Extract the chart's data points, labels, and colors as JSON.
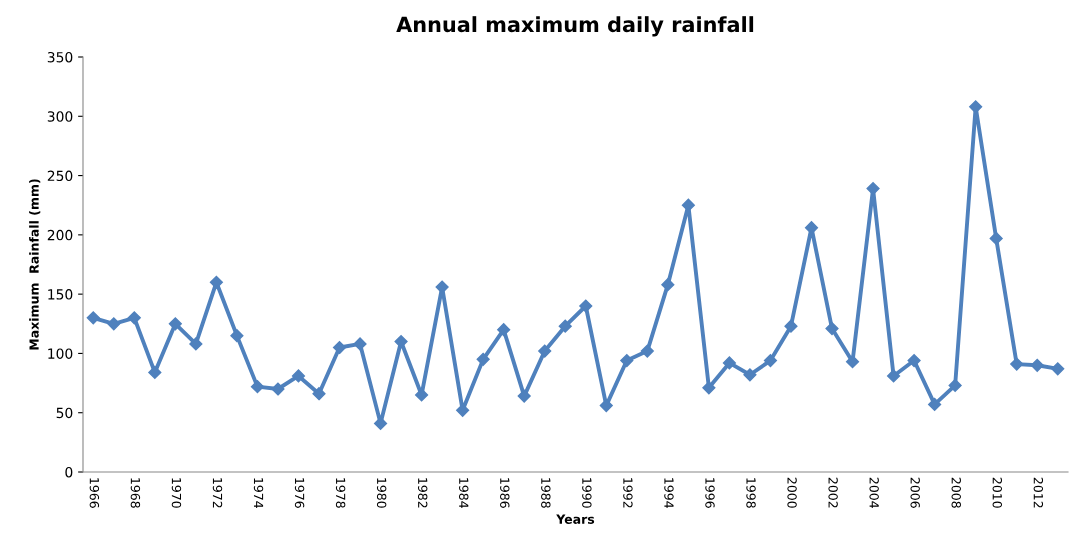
{
  "chart_data": {
    "type": "line",
    "title": "Annual maximum daily rainfall",
    "xlabel": "Years",
    "ylabel": "Maximum  Rainfall (mm)",
    "categories": [
      "1966",
      null,
      "1968",
      null,
      "1970",
      null,
      "1972",
      null,
      "1974",
      null,
      "1976",
      null,
      "1978",
      null,
      "1980",
      null,
      "1982",
      null,
      "1984",
      null,
      "1986",
      null,
      "1988",
      null,
      "1990",
      null,
      "1992",
      null,
      "1994",
      null,
      "1996",
      null,
      "1998",
      null,
      "2000",
      null,
      "2002",
      null,
      "2004",
      null,
      "2006",
      null,
      "2008",
      null,
      "2010",
      null,
      "2012",
      null
    ],
    "series": [
      {
        "color": "#4f81bd",
        "values": [
          130,
          125,
          130,
          84,
          125,
          108,
          160,
          115,
          72,
          70,
          81,
          66,
          105,
          108,
          41,
          110,
          65,
          156,
          52,
          95,
          120,
          64,
          102,
          123,
          140,
          56,
          94,
          102,
          158,
          225,
          71,
          92,
          82,
          94,
          123,
          206,
          121,
          93,
          239,
          81,
          94,
          57,
          73,
          308,
          197,
          91,
          90,
          87
        ]
      }
    ],
    "ylim": [
      0,
      350
    ],
    "yticks": [
      0,
      50,
      100,
      150,
      200,
      250,
      300,
      350
    ],
    "grid": false,
    "legend": false,
    "marker": "diamond",
    "line_style": "solid"
  }
}
